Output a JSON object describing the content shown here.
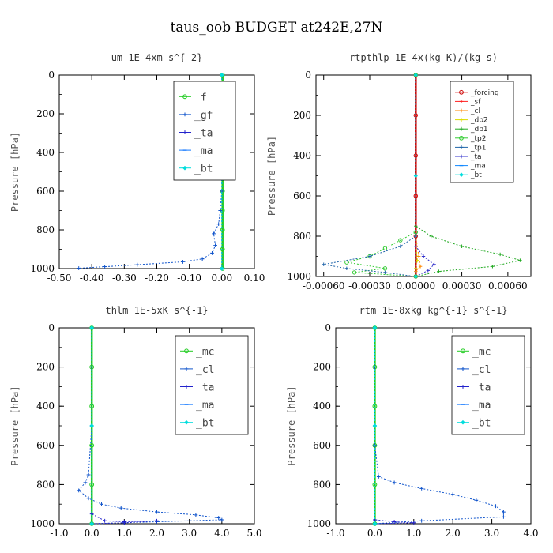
{
  "figure": {
    "title": "taus_oob  BUDGET at242E,27N"
  },
  "chart_data": [
    {
      "type": "line",
      "title": "um   1E-4xm s^{-2}",
      "ylabel": "Pressure [hPa]",
      "xlim": [
        -0.5,
        0.1
      ],
      "ylim": [
        1000,
        0
      ],
      "xticks": [
        -0.5,
        -0.4,
        -0.3,
        -0.2,
        -0.1,
        0.0,
        0.1
      ],
      "xtick_labels": [
        "-0.50",
        "-0.40",
        "-0.30",
        "-0.20",
        "-0.10",
        "0.00",
        "0.10"
      ],
      "yticks": [
        0,
        200,
        400,
        600,
        800,
        1000
      ],
      "ytick_labels": [
        "0",
        "200",
        "400",
        "600",
        "800",
        "1000"
      ],
      "legend": "top-right",
      "series": [
        {
          "name": "_f",
          "color": "#22cc22",
          "marker": "circle",
          "x": [
            0.002,
            0.002,
            0.002,
            0.002,
            0.002,
            0.002,
            0.002,
            0.002,
            0.002,
            0.002,
            0.002
          ],
          "y": [
            0,
            100,
            200,
            300,
            400,
            500,
            600,
            700,
            800,
            900,
            1000
          ]
        },
        {
          "name": "_gf",
          "color": "#1155cc",
          "marker": "plus",
          "x": [
            0.0,
            0.0,
            0.0,
            0.0,
            0.0,
            -0.005,
            -0.01,
            -0.025,
            -0.02,
            -0.03,
            -0.06,
            -0.12,
            -0.26,
            -0.36,
            -0.44
          ],
          "y": [
            0,
            150,
            300,
            450,
            600,
            700,
            770,
            820,
            880,
            920,
            950,
            965,
            980,
            990,
            998
          ]
        },
        {
          "name": "_ta",
          "color": "#2222cc",
          "marker": "plus",
          "x": [
            0.0,
            0.0,
            0.0
          ],
          "y": [
            0,
            500,
            1000
          ]
        },
        {
          "name": "_ma",
          "color": "#1177ff",
          "marker": "dash",
          "x": [
            0.0,
            0.0,
            0.0
          ],
          "y": [
            0,
            500,
            1000
          ]
        },
        {
          "name": "_bt",
          "color": "#00dddd",
          "marker": "diamond",
          "x": [
            0.0,
            0.0,
            0.0
          ],
          "y": [
            0,
            500,
            1000
          ]
        }
      ]
    },
    {
      "type": "line",
      "title": "rtpthlp   1E-4x(kg K)/(kg s)",
      "ylabel": "Pressure [hPa]",
      "xlim": [
        -0.00065,
        0.00075
      ],
      "ylim": [
        1000,
        0
      ],
      "xticks": [
        -0.0006,
        -0.0003,
        0.0,
        0.0003,
        0.0006
      ],
      "xtick_labels": [
        "-0.00060",
        "-0.00030",
        "0.00000",
        "0.00030",
        "0.00060"
      ],
      "yticks": [
        0,
        200,
        400,
        600,
        800,
        1000
      ],
      "ytick_labels": [
        "0",
        "200",
        "400",
        "600",
        "800",
        "1000"
      ],
      "legend": "top-right",
      "series": [
        {
          "name": "_forcing",
          "color": "#cc0000",
          "marker": "circle",
          "x": [
            0.0,
            0.0,
            0.0,
            0.0,
            0.0,
            0.0
          ],
          "y": [
            0,
            200,
            400,
            600,
            800,
            1000
          ]
        },
        {
          "name": "_sf",
          "color": "#ff2222",
          "marker": "plus",
          "x": [
            0.0,
            0.0,
            0.0,
            0.0,
            0.0,
            0.0
          ],
          "y": [
            0,
            200,
            400,
            600,
            800,
            1000
          ]
        },
        {
          "name": "_cl",
          "color": "#ff8800",
          "marker": "plus",
          "x": [
            0.0,
            0.0,
            2e-05,
            3e-05,
            0.0,
            0.0
          ],
          "y": [
            0,
            800,
            900,
            950,
            975,
            1000
          ]
        },
        {
          "name": "_dp2",
          "color": "#dddd00",
          "marker": "plus",
          "x": [
            0.0,
            0.0,
            1e-05,
            0.0,
            0.0
          ],
          "y": [
            0,
            800,
            920,
            960,
            1000
          ]
        },
        {
          "name": "_dp1",
          "color": "#22aa22",
          "marker": "plus",
          "x": [
            0.0,
            0.0,
            0.0001,
            0.0003,
            0.00055,
            0.00068,
            0.0005,
            0.00015,
            0.0
          ],
          "y": [
            0,
            750,
            800,
            850,
            890,
            920,
            950,
            975,
            1000
          ]
        },
        {
          "name": "_tp2",
          "color": "#33cc33",
          "marker": "circle",
          "x": [
            0.0,
            0.0,
            -0.0001,
            -0.0002,
            -0.0003,
            -0.00045,
            -0.0002,
            -0.0004,
            0.0
          ],
          "y": [
            0,
            780,
            820,
            860,
            900,
            930,
            960,
            980,
            1000
          ]
        },
        {
          "name": "_tp1",
          "color": "#2266aa",
          "marker": "plus",
          "x": [
            0.0,
            0.0,
            -0.0001,
            -0.0003,
            -0.0006,
            -0.00045,
            -0.0002,
            0.0
          ],
          "y": [
            0,
            800,
            850,
            900,
            940,
            960,
            980,
            1000
          ]
        },
        {
          "name": "_ta",
          "color": "#3333cc",
          "marker": "plus",
          "x": [
            0.0,
            0.0,
            5e-05,
            0.00012,
            8e-05,
            0.0
          ],
          "y": [
            0,
            850,
            900,
            940,
            970,
            1000
          ]
        },
        {
          "name": "_ma",
          "color": "#1188ff",
          "marker": "dash",
          "x": [
            0.0,
            0.0,
            0.0
          ],
          "y": [
            0,
            500,
            1000
          ]
        },
        {
          "name": "_bt",
          "color": "#00dddd",
          "marker": "diamond",
          "x": [
            0.0,
            0.0,
            0.0
          ],
          "y": [
            0,
            500,
            1000
          ]
        }
      ]
    },
    {
      "type": "line",
      "title": "thlm   1E-5xK s^{-1}",
      "ylabel": "Pressure [hPa]",
      "xlim": [
        -1.0,
        5.0
      ],
      "ylim": [
        1000,
        0
      ],
      "xticks": [
        -1,
        0,
        1,
        2,
        3,
        4,
        5
      ],
      "xtick_labels": [
        "-1.0",
        "0.0",
        "1.0",
        "2.0",
        "3.0",
        "4.0",
        "5.0"
      ],
      "yticks": [
        0,
        200,
        400,
        600,
        800,
        1000
      ],
      "ytick_labels": [
        "0",
        "200",
        "400",
        "600",
        "800",
        "1000"
      ],
      "legend": "top-right",
      "series": [
        {
          "name": "_mc",
          "color": "#22cc22",
          "marker": "circle",
          "x": [
            0.0,
            0.0,
            0.0,
            0.0,
            0.0,
            0.0
          ],
          "y": [
            0,
            200,
            400,
            600,
            800,
            1000
          ]
        },
        {
          "name": "_cl",
          "color": "#1155cc",
          "marker": "plus",
          "x": [
            0.0,
            0.0,
            0.0,
            -0.1,
            -0.2,
            -0.4,
            -0.1,
            0.3,
            0.9,
            2.0,
            3.2,
            3.9,
            4.0,
            2.0,
            1.0,
            0.0
          ],
          "y": [
            0,
            200,
            500,
            750,
            790,
            830,
            870,
            900,
            920,
            940,
            955,
            970,
            980,
            990,
            995,
            1000
          ]
        },
        {
          "name": "_ta",
          "color": "#2222cc",
          "marker": "plus",
          "x": [
            0.0,
            0.0,
            0.4,
            1.0,
            2.0,
            1.0,
            0.0
          ],
          "y": [
            0,
            950,
            985,
            990,
            985,
            995,
            1000
          ]
        },
        {
          "name": "_ma",
          "color": "#1177ff",
          "marker": "dash",
          "x": [
            0.0,
            0.0,
            0.0
          ],
          "y": [
            0,
            500,
            1000
          ]
        },
        {
          "name": "_bt",
          "color": "#00dddd",
          "marker": "diamond",
          "x": [
            0.0,
            0.0,
            0.0
          ],
          "y": [
            0,
            500,
            1000
          ]
        }
      ]
    },
    {
      "type": "line",
      "title": "rtm   1E-8xkg kg^{-1} s^{-1}",
      "ylabel": "Pressure [hPa]",
      "xlim": [
        -1.0,
        4.0
      ],
      "ylim": [
        1000,
        0
      ],
      "xticks": [
        -1,
        0,
        1,
        2,
        3,
        4
      ],
      "xtick_labels": [
        "-1.0",
        "0.0",
        "1.0",
        "2.0",
        "3.0",
        "4.0"
      ],
      "yticks": [
        0,
        200,
        400,
        600,
        800,
        1000
      ],
      "ytick_labels": [
        "0",
        "200",
        "400",
        "600",
        "800",
        "1000"
      ],
      "legend": "top-right",
      "series": [
        {
          "name": "_mc",
          "color": "#22cc22",
          "marker": "circle",
          "x": [
            0.0,
            0.0,
            0.0,
            0.0,
            0.0,
            0.0
          ],
          "y": [
            0,
            200,
            400,
            600,
            800,
            1000
          ]
        },
        {
          "name": "_cl",
          "color": "#1155cc",
          "marker": "plus",
          "x": [
            0.0,
            0.0,
            0.0,
            0.1,
            0.5,
            1.2,
            2.0,
            2.6,
            3.1,
            3.3,
            3.3,
            1.2,
            0.0
          ],
          "y": [
            0,
            200,
            600,
            760,
            790,
            820,
            850,
            880,
            910,
            940,
            965,
            985,
            1000
          ]
        },
        {
          "name": "_ta",
          "color": "#2222cc",
          "marker": "plus",
          "x": [
            0.0,
            0.0,
            0.5,
            1.0,
            0.0
          ],
          "y": [
            0,
            980,
            990,
            995,
            1000
          ]
        },
        {
          "name": "_ma",
          "color": "#1177ff",
          "marker": "dash",
          "x": [
            0.0,
            0.0,
            0.0
          ],
          "y": [
            0,
            500,
            1000
          ]
        },
        {
          "name": "_bt",
          "color": "#00dddd",
          "marker": "diamond",
          "x": [
            0.0,
            0.0,
            0.0
          ],
          "y": [
            0,
            500,
            1000
          ]
        }
      ]
    }
  ]
}
